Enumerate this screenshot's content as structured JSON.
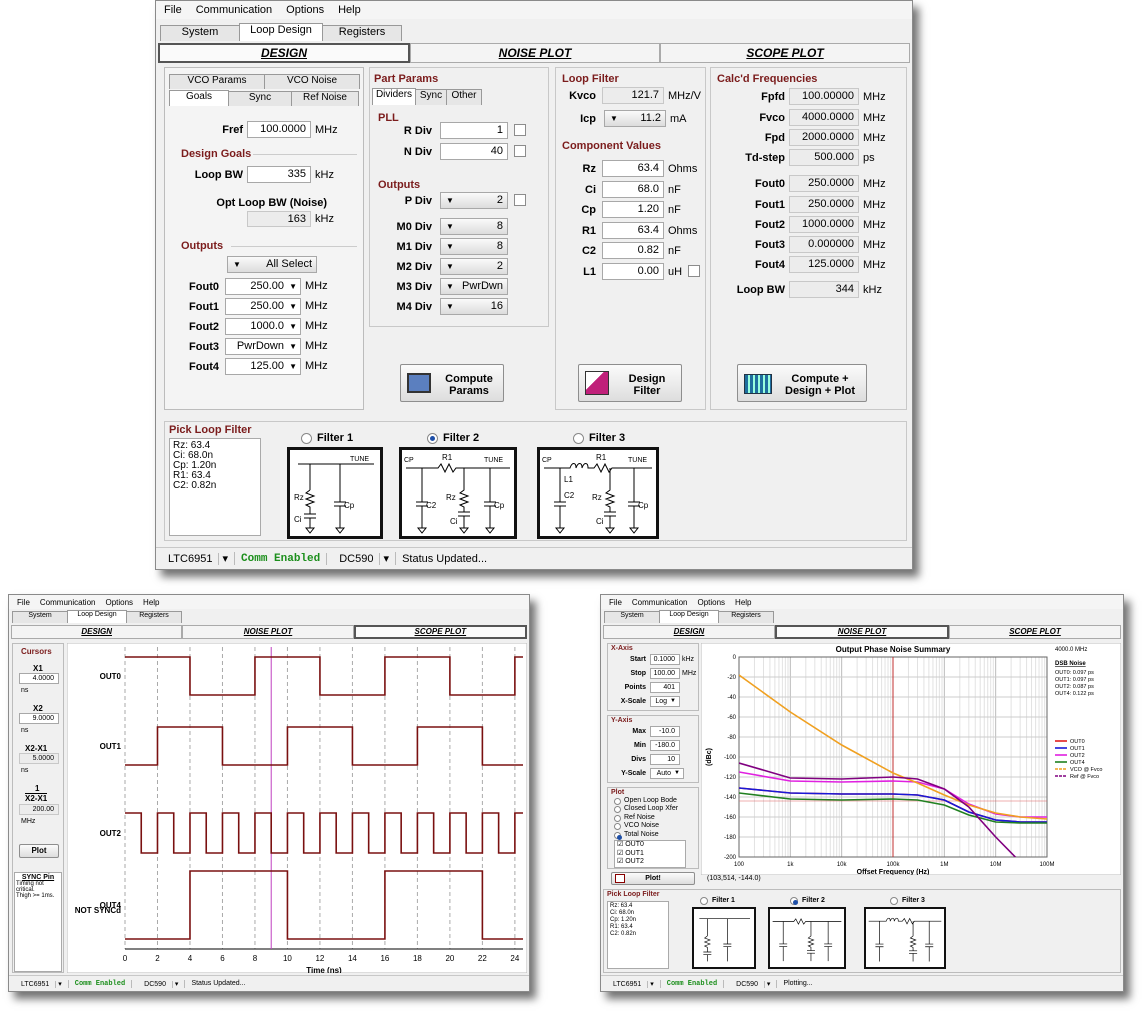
{
  "menu": [
    "File",
    "Communication",
    "Options",
    "Help"
  ],
  "tabs": [
    "System",
    "Loop Design",
    "Registers"
  ],
  "nav": [
    "DESIGN",
    "NOISE PLOT",
    "SCOPE PLOT"
  ],
  "goals": {
    "subtabs_top": [
      "VCO Params",
      "VCO Noise"
    ],
    "subtabs_bottom": [
      "Goals",
      "Sync",
      "Ref Noise"
    ],
    "fref_label": "Fref",
    "fref": "100.0000",
    "fref_unit": "MHz",
    "design_goals": "Design Goals",
    "loop_bw_label": "Loop BW",
    "loop_bw": "335",
    "loop_bw_unit": "kHz",
    "opt_label": "Opt Loop BW (Noise)",
    "opt_value": "163",
    "opt_unit": "kHz",
    "outputs_hdr": "Outputs",
    "all_select": "All Select",
    "outputs": [
      {
        "label": "Fout0",
        "value": "250.00",
        "unit": "MHz"
      },
      {
        "label": "Fout1",
        "value": "250.00",
        "unit": "MHz"
      },
      {
        "label": "Fout2",
        "value": "1000.0",
        "unit": "MHz"
      },
      {
        "label": "Fout3",
        "value": "PwrDown",
        "unit": "MHz"
      },
      {
        "label": "Fout4",
        "value": "125.00",
        "unit": "MHz"
      }
    ]
  },
  "part": {
    "hdr": "Part Params",
    "subtabs": [
      "Dividers",
      "Sync",
      "Other"
    ],
    "pll_hdr": "PLL",
    "rdiv_label": "R Div",
    "rdiv": "1",
    "ndiv_label": "N Div",
    "ndiv": "40",
    "outputs_hdr": "Outputs",
    "divs": [
      {
        "label": "P Div",
        "value": "2"
      },
      {
        "label": "M0 Div",
        "value": "8"
      },
      {
        "label": "M1 Div",
        "value": "8"
      },
      {
        "label": "M2 Div",
        "value": "2"
      },
      {
        "label": "M3 Div",
        "value": "PwrDwn"
      },
      {
        "label": "M4 Div",
        "value": "16"
      }
    ],
    "button": [
      "Compute",
      "Params"
    ]
  },
  "loopfilter": {
    "hdr": "Loop Filter",
    "kvco_label": "Kvco",
    "kvco": "121.7",
    "kvco_unit": "MHz/V",
    "icp_label": "Icp",
    "icp": "11.2",
    "icp_unit": "mA",
    "comp_hdr": "Component Values",
    "comps": [
      {
        "label": "Rz",
        "value": "63.4",
        "unit": "Ohms"
      },
      {
        "label": "Ci",
        "value": "68.0",
        "unit": "nF"
      },
      {
        "label": "Cp",
        "value": "1.20",
        "unit": "nF"
      },
      {
        "label": "R1",
        "value": "63.4",
        "unit": "Ohms"
      },
      {
        "label": "C2",
        "value": "0.82",
        "unit": "nF"
      },
      {
        "label": "L1",
        "value": "0.00",
        "unit": "uH"
      }
    ],
    "button": [
      "Design",
      "Filter"
    ]
  },
  "calc": {
    "hdr": "Calc'd Frequencies",
    "rows": [
      {
        "label": "Fpfd",
        "value": "100.00000",
        "unit": "MHz"
      },
      {
        "label": "Fvco",
        "value": "4000.0000",
        "unit": "MHz"
      },
      {
        "label": "Fpd",
        "value": "2000.0000",
        "unit": "MHz"
      },
      {
        "label": "Td-step",
        "value": "500.000",
        "unit": "ps"
      },
      {
        "label": "Fout0",
        "value": "250.0000",
        "unit": "MHz"
      },
      {
        "label": "Fout1",
        "value": "250.0000",
        "unit": "MHz"
      },
      {
        "label": "Fout2",
        "value": "1000.0000",
        "unit": "MHz"
      },
      {
        "label": "Fout3",
        "value": "0.000000",
        "unit": "MHz"
      },
      {
        "label": "Fout4",
        "value": "125.0000",
        "unit": "MHz"
      },
      {
        "label": "Loop BW",
        "value": "344",
        "unit": "kHz"
      }
    ],
    "button": [
      "Compute +",
      "Design + Plot"
    ]
  },
  "pick": {
    "hdr": "Pick Loop Filter",
    "list": [
      "Rz:  63.4",
      "Ci:   68.0n",
      "Cp:  1.20n",
      "R1:  63.4",
      "C2:  0.82n"
    ],
    "filters": [
      "Filter 1",
      "Filter 2",
      "Filter 3"
    ],
    "selected": 1,
    "sch": {
      "tune": "TUNE",
      "cp": "CP",
      "rz": "Rz",
      "ci": "Ci",
      "cpc": "Cp",
      "r1": "R1",
      "c2": "C2",
      "l1": "L1"
    }
  },
  "status": {
    "device": "LTC6951",
    "comm": "Comm Enabled",
    "board": "DC590",
    "msg": "Status Updated...",
    "msg2": "Plotting..."
  },
  "scope": {
    "cursors_hdr": "Cursors",
    "x1_label": "X1",
    "x1": "4.0000",
    "x1_unit": "ns",
    "x2_label": "X2",
    "x2": "9.0000",
    "x2_unit": "ns",
    "dx_label": "X2-X1",
    "dx": "5.0000",
    "dx_unit": "ns",
    "inv_num": "1",
    "inv_den": "X2-X1",
    "inv": "200.00",
    "inv_unit": "MHz",
    "plot_btn": "Plot",
    "sync_hdr": "SYNC Pin",
    "sync_text": [
      "Timing not",
      "critical.",
      "Thigh >= 1ms."
    ],
    "traces": [
      "OUT0",
      "OUT1",
      "OUT2",
      "OUT4",
      "NOT SYNCd"
    ],
    "xlabel": "Time (ns)",
    "xticks": [
      "0",
      "2",
      "4",
      "6",
      "8",
      "10",
      "12",
      "14",
      "16",
      "18",
      "20",
      "22",
      "24"
    ]
  },
  "noise": {
    "xaxis_hdr": "X-Axis",
    "start_label": "Start",
    "start": "0.1000",
    "start_unit": "kHz",
    "stop_label": "Stop",
    "stop": "100.00",
    "stop_unit": "MHz",
    "points_label": "Points",
    "points": "401",
    "xscale_label": "X-Scale",
    "xscale": "Log",
    "yaxis_hdr": "Y-Axis",
    "max_label": "Max",
    "max": "-10.0",
    "min_label": "Min",
    "min": "-180.0",
    "divs_label": "Divs",
    "divs": "10",
    "yscale_label": "Y-Scale",
    "yscale": "Auto",
    "plot_hdr": "Plot",
    "plot_opts": [
      "Open Loop Bode",
      "Closed Loop Xfer",
      "Ref Noise",
      "VCO Noise",
      "Total Noise"
    ],
    "plot_sel": 4,
    "outs": [
      "OUT0",
      "OUT1",
      "OUT2"
    ],
    "plot_btn": "Plot!",
    "coords": "(103,514, -144.0)",
    "freq": "4000.0 MHz",
    "dsb_hdr": "DSB Noise",
    "dsb": [
      "OUT0: 0.097 ps",
      "OUT1: 0.097 ps",
      "OUT2: 0.087 ps",
      "OUT4: 0.122 ps"
    ]
  },
  "chart_data": {
    "type": "line",
    "title": "Output Phase Noise Summary",
    "xlabel": "Offset Frequency (Hz)",
    "ylabel": "(dBc)",
    "xscale": "log",
    "xlim": [
      100,
      100000000
    ],
    "ylim": [
      -200,
      0
    ],
    "xticklabels": [
      "100",
      "1k",
      "10k",
      "100k",
      "1M",
      "10M",
      "100M"
    ],
    "yticks": [
      0,
      -20,
      -40,
      -60,
      -80,
      -100,
      -120,
      -140,
      -160,
      -180,
      -200
    ],
    "grid": true,
    "legend": "right",
    "x": [
      100,
      1000,
      10000,
      100000,
      300000,
      1000000,
      3000000,
      10000000,
      30000000,
      100000000
    ],
    "series": [
      {
        "name": "OUT0",
        "color": "#e02020",
        "values": [
          -131,
          -136,
          -137,
          -137,
          -138,
          -143,
          -155,
          -163,
          -165,
          -165
        ]
      },
      {
        "name": "OUT1",
        "color": "#1818d8",
        "values": [
          -131,
          -136,
          -137,
          -137,
          -138,
          -143,
          -155,
          -163,
          -165,
          -165
        ]
      },
      {
        "name": "OUT2",
        "color": "#e020e0",
        "values": [
          -115,
          -124,
          -125,
          -124,
          -125,
          -132,
          -147,
          -157,
          -160,
          -160
        ]
      },
      {
        "name": "OUT4",
        "color": "#208020",
        "values": [
          -136,
          -142,
          -143,
          -142,
          -143,
          -148,
          -158,
          -165,
          -166,
          -166
        ]
      },
      {
        "name": "VCO @ Fvco",
        "color": "#f0a020",
        "values": [
          -18,
          -55,
          -88,
          -116,
          -126,
          -138,
          -148,
          -156,
          -160,
          -162
        ]
      },
      {
        "name": "Ref @ Fvco",
        "color": "#800080",
        "values": [
          -106,
          -121,
          -122,
          -120,
          -122,
          -132,
          -150,
          -180,
          -205,
          -230
        ]
      }
    ]
  }
}
